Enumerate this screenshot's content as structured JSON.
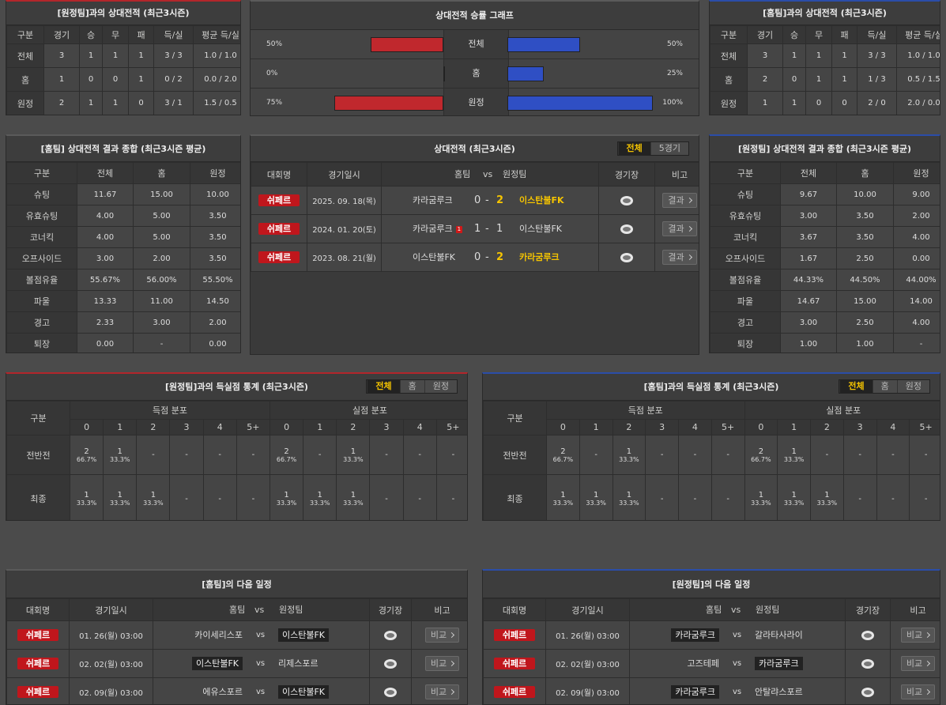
{
  "h2h_record_vs_away": {
    "title": "[원정팀]과의 상대전적 (최근3시즌)",
    "headers": [
      "구분",
      "경기",
      "승",
      "무",
      "패",
      "득/실",
      "평균 득/실"
    ],
    "rows": [
      [
        "전체",
        3,
        1,
        1,
        1,
        "3 / 3",
        "1.0 / 1.0"
      ],
      [
        "홈",
        1,
        0,
        0,
        1,
        "0 / 2",
        "0.0 / 2.0"
      ],
      [
        "원정",
        2,
        1,
        1,
        0,
        "3 / 1",
        "1.5 / 0.5"
      ]
    ]
  },
  "win_rate_graph": {
    "title": "상대전적 승률 그래프",
    "categories": [
      "전체",
      "홈",
      "원정"
    ],
    "xlim": [
      0,
      100
    ],
    "series": [
      {
        "color": "#c0282d",
        "values": [
          50,
          0,
          75
        ],
        "value_labels": [
          "50%",
          "0%",
          "75%"
        ]
      },
      {
        "color": "#2f4fc4",
        "values": [
          50,
          25,
          100
        ],
        "value_labels": [
          "50%",
          "25%",
          "100%"
        ]
      }
    ]
  },
  "h2h_record_vs_home": {
    "title": "[홈팀]과의 상대전적 (최근3시즌)",
    "headers": [
      "구분",
      "경기",
      "승",
      "무",
      "패",
      "득/실",
      "평균 득/실"
    ],
    "rows": [
      [
        "전체",
        3,
        1,
        1,
        1,
        "3 / 3",
        "1.0 / 1.0"
      ],
      [
        "홈",
        2,
        0,
        1,
        1,
        "1 / 3",
        "0.5 / 1.5"
      ],
      [
        "원정",
        1,
        1,
        0,
        0,
        "2 / 0",
        "2.0 / 0.0"
      ]
    ]
  },
  "home_stats_summary": {
    "title": "[홈팀] 상대전적 결과 종합 (최근3시즌 평균)",
    "headers": [
      "구분",
      "전체",
      "홈",
      "원정"
    ],
    "rows": [
      [
        "슈팅",
        "11.67",
        "15.00",
        "10.00"
      ],
      [
        "유효슈팅",
        "4.00",
        "5.00",
        "3.50"
      ],
      [
        "코너킥",
        "4.00",
        "5.00",
        "3.50"
      ],
      [
        "오프사이드",
        "3.00",
        "2.00",
        "3.50"
      ],
      [
        "볼점유율",
        "55.67%",
        "56.00%",
        "55.50%"
      ],
      [
        "파울",
        "13.33",
        "11.00",
        "14.50"
      ],
      [
        "경고",
        "2.33",
        "3.00",
        "2.00"
      ],
      [
        "퇴장",
        "0.00",
        "-",
        "0.00"
      ]
    ]
  },
  "h2h_matches": {
    "title": "상대전적 (최근3시즌)",
    "tabs": [
      "전체",
      "5경기"
    ],
    "active_tab": 0,
    "headers": [
      "대회명",
      "경기일시",
      "홈팀",
      "vs",
      "원정팀",
      "경기장",
      "비고"
    ],
    "score_separator": "-",
    "button_label": "결과",
    "rows": [
      {
        "league": "쉬페르",
        "date": "2025. 09. 18(목)",
        "home": "카라굼루크",
        "home_score": 0,
        "away_score": 2,
        "away": "이스탄불FK"
      },
      {
        "league": "쉬페르",
        "date": "2024. 01. 20(토)",
        "home": "카라굼루크",
        "home_red_cards": 1,
        "home_score": 1,
        "away_score": 1,
        "away": "이스탄불FK"
      },
      {
        "league": "쉬페르",
        "date": "2023. 08. 21(월)",
        "home": "이스탄불FK",
        "home_score": 0,
        "away_score": 2,
        "away": "카라굼루크"
      }
    ]
  },
  "away_stats_summary": {
    "title": "[원정팀] 상대전적 결과 종합 (최근3시즌 평균)",
    "headers": [
      "구분",
      "전체",
      "홈",
      "원정"
    ],
    "rows": [
      [
        "슈팅",
        "9.67",
        "10.00",
        "9.00"
      ],
      [
        "유효슈팅",
        "3.00",
        "3.50",
        "2.00"
      ],
      [
        "코너킥",
        "3.67",
        "3.50",
        "4.00"
      ],
      [
        "오프사이드",
        "1.67",
        "2.50",
        "0.00"
      ],
      [
        "볼점유율",
        "44.33%",
        "44.50%",
        "44.00%"
      ],
      [
        "파울",
        "14.67",
        "15.00",
        "14.00"
      ],
      [
        "경고",
        "3.00",
        "2.50",
        "4.00"
      ],
      [
        "퇴장",
        "1.00",
        "1.00",
        "-"
      ]
    ]
  },
  "goal_stats_vs_away": {
    "title": "[원정팀]과의 득실점 통계 (최근3시즌)",
    "tabs": [
      "전체",
      "홈",
      "원정"
    ],
    "active_tab": 0,
    "headers": {
      "category": "구분",
      "scored": "득점 분포",
      "conceded": "실점 분포",
      "buckets": [
        "0",
        "1",
        "2",
        "3",
        "4",
        "5+"
      ]
    },
    "rows": [
      {
        "label": "전반전",
        "scored": [
          {
            "count": 2,
            "pct": "66.7%"
          },
          {
            "count": 1,
            "pct": "33.3%"
          },
          "-",
          "-",
          "-",
          "-"
        ],
        "conceded": [
          {
            "count": 2,
            "pct": "66.7%"
          },
          "-",
          {
            "count": 1,
            "pct": "33.3%"
          },
          "-",
          "-",
          "-"
        ]
      },
      {
        "label": "최종",
        "scored": [
          {
            "count": 1,
            "pct": "33.3%"
          },
          {
            "count": 1,
            "pct": "33.3%"
          },
          {
            "count": 1,
            "pct": "33.3%"
          },
          "-",
          "-",
          "-"
        ],
        "conceded": [
          {
            "count": 1,
            "pct": "33.3%"
          },
          {
            "count": 1,
            "pct": "33.3%"
          },
          {
            "count": 1,
            "pct": "33.3%"
          },
          "-",
          "-",
          "-"
        ]
      }
    ]
  },
  "goal_stats_vs_home": {
    "title": "[홈팀]과의 득실점 통계 (최근3시즌)",
    "tabs": [
      "전체",
      "홈",
      "원정"
    ],
    "active_tab": 0,
    "headers": {
      "category": "구분",
      "scored": "득점 분포",
      "conceded": "실점 분포",
      "buckets": [
        "0",
        "1",
        "2",
        "3",
        "4",
        "5+"
      ]
    },
    "rows": [
      {
        "label": "전반전",
        "scored": [
          {
            "count": 2,
            "pct": "66.7%"
          },
          "-",
          {
            "count": 1,
            "pct": "33.3%"
          },
          "-",
          "-",
          "-"
        ],
        "conceded": [
          {
            "count": 2,
            "pct": "66.7%"
          },
          {
            "count": 1,
            "pct": "33.3%"
          },
          "-",
          "-",
          "-",
          "-"
        ]
      },
      {
        "label": "최종",
        "scored": [
          {
            "count": 1,
            "pct": "33.3%"
          },
          {
            "count": 1,
            "pct": "33.3%"
          },
          {
            "count": 1,
            "pct": "33.3%"
          },
          "-",
          "-",
          "-"
        ],
        "conceded": [
          {
            "count": 1,
            "pct": "33.3%"
          },
          {
            "count": 1,
            "pct": "33.3%"
          },
          {
            "count": 1,
            "pct": "33.3%"
          },
          "-",
          "-",
          "-"
        ]
      }
    ]
  },
  "home_next_schedule": {
    "title": "[홈팀]의 다음 일정",
    "headers": [
      "대회명",
      "경기일시",
      "홈팀",
      "vs",
      "원정팀",
      "경기장",
      "비고"
    ],
    "vs": "vs",
    "button_label": "비교",
    "rows": [
      {
        "league": "쉬페르",
        "datetime": "01. 26(월) 03:00",
        "home": "카이세리스포",
        "away": "이스탄불FK",
        "highlight": "away"
      },
      {
        "league": "쉬페르",
        "datetime": "02. 02(월) 03:00",
        "home": "이스탄불FK",
        "away": "리제스포르",
        "highlight": "home"
      },
      {
        "league": "쉬페르",
        "datetime": "02. 09(월) 03:00",
        "home": "에유스포르",
        "away": "이스탄불FK",
        "highlight": "away"
      }
    ]
  },
  "away_next_schedule": {
    "title": "[원정팀]의 다음 일정",
    "headers": [
      "대회명",
      "경기일시",
      "홈팀",
      "vs",
      "원정팀",
      "경기장",
      "비고"
    ],
    "vs": "vs",
    "button_label": "비교",
    "rows": [
      {
        "league": "쉬페르",
        "datetime": "01. 26(월) 03:00",
        "home": "카라굼루크",
        "away": "갈라타사라이",
        "highlight": "home"
      },
      {
        "league": "쉬페르",
        "datetime": "02. 02(월) 03:00",
        "home": "고즈테페",
        "away": "카라굼루크",
        "highlight": "away"
      },
      {
        "league": "쉬페르",
        "datetime": "02. 09(월) 03:00",
        "home": "카라굼루크",
        "away": "안탈랴스포르",
        "highlight": "home"
      }
    ]
  }
}
